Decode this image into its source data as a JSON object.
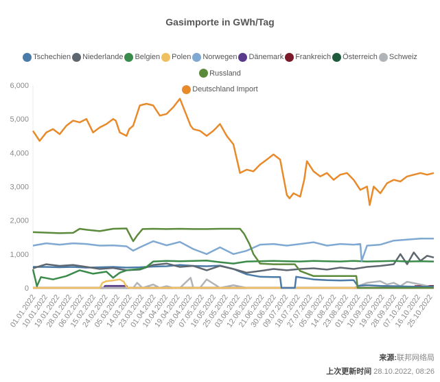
{
  "chart_data": {
    "type": "line",
    "title": "Gasimporte in GWh/Tag",
    "xlabel": "",
    "ylabel": "",
    "ylim": [
      0,
      6000
    ],
    "yticks": [
      "0",
      "1,000",
      "2,000",
      "3,000",
      "4,000",
      "5,000",
      "6,000"
    ],
    "ytick_values": [
      0,
      1000,
      2000,
      3000,
      4000,
      5000,
      6000
    ],
    "grid": false,
    "legend_position": "top",
    "x_day_range": [
      0,
      300
    ],
    "xtick_labels": [
      "01.01.2022",
      "10.01.2022",
      "19.01.2022",
      "28.01.2022",
      "06.02.2022",
      "15.02.2022",
      "24.02.2022",
      "05.03.2022",
      "14.03.2022",
      "23.03.2022",
      "01.04.2022",
      "10.04.2022",
      "19.04.2022",
      "28.04.2022",
      "07.05.2022",
      "16.05.2022",
      "25.05.2022",
      "03.06.2022",
      "12.06.2022",
      "21.06.2022",
      "30.06.2022",
      "09.07.2022",
      "18.07.2022",
      "27.07.2022",
      "05.08.2022",
      "14.08.2022",
      "23.08.2022",
      "01.09.2022",
      "10.09.2022",
      "19.09.2022",
      "28.09.2022",
      "07.10.2022",
      "16.10.2022",
      "25.10.2022"
    ],
    "x_days": [
      0,
      9,
      18,
      27,
      36,
      45,
      54,
      63,
      72,
      81,
      90,
      99,
      108,
      117,
      126,
      135,
      144,
      153,
      162,
      171,
      180,
      189,
      198,
      207,
      216,
      225,
      234,
      243,
      252,
      261,
      270,
      279,
      288,
      297
    ],
    "series": [
      {
        "name": "Tschechien",
        "color": "#4a7aa8",
        "x": [
          0,
          10,
          20,
          30,
          40,
          50,
          60,
          70,
          80,
          90,
          100,
          110,
          120,
          130,
          140,
          150,
          160,
          170,
          180,
          185,
          186,
          196,
          197,
          210,
          220,
          230,
          240,
          243,
          250,
          260,
          270,
          280,
          290,
          300
        ],
        "y": [
          620,
          620,
          610,
          620,
          600,
          610,
          620,
          600,
          610,
          630,
          640,
          680,
          650,
          640,
          660,
          560,
          400,
          330,
          320,
          320,
          0,
          0,
          330,
          250,
          230,
          220,
          230,
          60,
          80,
          60,
          50,
          40,
          30,
          40
        ]
      },
      {
        "name": "Niederlande",
        "color": "#5e6770",
        "x": [
          0,
          10,
          20,
          30,
          40,
          50,
          60,
          70,
          80,
          90,
          100,
          110,
          120,
          130,
          140,
          150,
          160,
          170,
          180,
          190,
          200,
          210,
          220,
          230,
          240,
          250,
          260,
          270,
          275,
          280,
          285,
          290,
          295,
          300
        ],
        "y": [
          580,
          700,
          650,
          680,
          620,
          560,
          590,
          520,
          540,
          680,
          720,
          620,
          650,
          520,
          650,
          560,
          450,
          500,
          560,
          520,
          560,
          580,
          540,
          600,
          560,
          620,
          650,
          700,
          1000,
          700,
          1050,
          800,
          950,
          900
        ]
      },
      {
        "name": "Belgien",
        "color": "#3a8a4a",
        "x": [
          0,
          3,
          6,
          15,
          25,
          35,
          45,
          55,
          60,
          65,
          70,
          80,
          85,
          90,
          100,
          110,
          120,
          130,
          140,
          150,
          160,
          170,
          180,
          190,
          200,
          210,
          220,
          230,
          240,
          250,
          260,
          270,
          280,
          290,
          300
        ],
        "y": [
          550,
          50,
          320,
          250,
          350,
          520,
          420,
          480,
          300,
          450,
          520,
          560,
          620,
          780,
          800,
          790,
          800,
          810,
          760,
          720,
          780,
          790,
          800,
          790,
          780,
          800,
          790,
          780,
          800,
          780,
          790,
          800,
          780,
          790,
          780
        ]
      },
      {
        "name": "Polen",
        "color": "#f0c060",
        "x": [
          0,
          50,
          52,
          55,
          60,
          65,
          68,
          70,
          72,
          150,
          300
        ],
        "y": [
          0,
          0,
          150,
          200,
          220,
          250,
          180,
          30,
          0,
          0,
          0
        ]
      },
      {
        "name": "Norwegen",
        "color": "#7fa8d2",
        "x": [
          0,
          10,
          20,
          30,
          40,
          50,
          60,
          70,
          75,
          80,
          90,
          100,
          110,
          120,
          130,
          140,
          150,
          160,
          170,
          180,
          190,
          200,
          210,
          220,
          230,
          240,
          245,
          246,
          250,
          260,
          270,
          280,
          290,
          300
        ],
        "y": [
          1250,
          1320,
          1280,
          1320,
          1300,
          1250,
          1260,
          1230,
          1100,
          1200,
          1380,
          1260,
          1360,
          1150,
          1000,
          1200,
          1000,
          1100,
          1280,
          1300,
          1250,
          1300,
          1350,
          1250,
          1300,
          1280,
          1300,
          800,
          1250,
          1280,
          1400,
          1430,
          1460,
          1460
        ]
      },
      {
        "name": "Dänemark",
        "color": "#5a3a8a",
        "x": [
          0,
          53,
          54,
          70,
          71,
          300
        ],
        "y": [
          0,
          0,
          60,
          60,
          0,
          0
        ]
      },
      {
        "name": "Frankreich",
        "color": "#7a1a2a",
        "x": [
          0,
          285,
          286,
          300
        ],
        "y": [
          0,
          0,
          50,
          60
        ]
      },
      {
        "name": "Österreich",
        "color": "#1e5a3c",
        "x": [
          0,
          300
        ],
        "y": [
          0,
          0
        ]
      },
      {
        "name": "Schweiz",
        "color": "#b0b4b8",
        "x": [
          0,
          75,
          78,
          82,
          90,
          95,
          100,
          105,
          110,
          118,
          120,
          125,
          130,
          140,
          150,
          160,
          170,
          180,
          240,
          250,
          260,
          265,
          270,
          275,
          280,
          290,
          295,
          300
        ],
        "y": [
          0,
          0,
          150,
          0,
          100,
          0,
          50,
          0,
          0,
          300,
          0,
          0,
          250,
          0,
          80,
          0,
          0,
          0,
          0,
          150,
          200,
          100,
          150,
          50,
          180,
          100,
          60,
          0
        ]
      },
      {
        "name": "Russland",
        "color": "#5a8a3a",
        "x": [
          0,
          20,
          30,
          35,
          40,
          50,
          60,
          70,
          75,
          78,
          82,
          90,
          100,
          110,
          120,
          130,
          140,
          150,
          155,
          158,
          162,
          165,
          170,
          180,
          196,
          200,
          210,
          220,
          230,
          242,
          243,
          300
        ],
        "y": [
          1650,
          1620,
          1630,
          1750,
          1720,
          1680,
          1750,
          1760,
          1380,
          1550,
          1740,
          1750,
          1740,
          1750,
          1740,
          1740,
          1750,
          1750,
          1750,
          1600,
          1300,
          1000,
          720,
          700,
          700,
          500,
          350,
          350,
          350,
          350,
          0,
          0
        ]
      },
      {
        "name": "Deutschland Import",
        "color": "#e8892a",
        "x": [
          0,
          5,
          10,
          15,
          20,
          25,
          30,
          35,
          40,
          45,
          50,
          55,
          60,
          62,
          65,
          70,
          72,
          75,
          80,
          85,
          90,
          95,
          100,
          105,
          110,
          115,
          118,
          120,
          125,
          130,
          135,
          140,
          145,
          150,
          155,
          160,
          165,
          170,
          175,
          180,
          185,
          190,
          192,
          195,
          200,
          203,
          205,
          210,
          215,
          220,
          225,
          230,
          235,
          240,
          245,
          250,
          252,
          255,
          260,
          265,
          270,
          275,
          280,
          285,
          290,
          295,
          300
        ],
        "y": [
          4650,
          4350,
          4600,
          4700,
          4550,
          4800,
          4950,
          4900,
          5000,
          4600,
          4750,
          4850,
          5000,
          4950,
          4600,
          4500,
          4700,
          4800,
          5400,
          5450,
          5400,
          5100,
          5150,
          5350,
          5600,
          5100,
          4800,
          4700,
          4650,
          4500,
          4650,
          4850,
          4500,
          4250,
          3400,
          3500,
          3450,
          3650,
          3800,
          3950,
          3800,
          2750,
          2650,
          2800,
          2700,
          3200,
          3750,
          3450,
          3300,
          3400,
          3200,
          3350,
          3400,
          3200,
          2900,
          3000,
          2450,
          3000,
          2800,
          3100,
          3200,
          3150,
          3300,
          3350,
          3400,
          3350,
          3400
        ]
      }
    ]
  },
  "legend": {
    "items": [
      {
        "label": "Tschechien",
        "color": "#4a7aa8"
      },
      {
        "label": "Niederlande",
        "color": "#5e6770"
      },
      {
        "label": "Belgien",
        "color": "#3a8a4a"
      },
      {
        "label": "Polen",
        "color": "#f0c060"
      },
      {
        "label": "Norwegen",
        "color": "#7fa8d2"
      },
      {
        "label": "Dänemark",
        "color": "#5a3a8a"
      },
      {
        "label": "Frankreich",
        "color": "#7a1a2a"
      },
      {
        "label": "Österreich",
        "color": "#1e5a3c"
      },
      {
        "label": "Schweiz",
        "color": "#b0b4b8"
      },
      {
        "label": "Russland",
        "color": "#5a8a3a"
      },
      {
        "label": "Deutschland Import",
        "color": "#e8892a"
      }
    ]
  },
  "footer": {
    "source_label": "来源:",
    "source_value": "联邦网络局",
    "updated_label": "上次更新时间",
    "updated_value": "28.10.2022, 08:26"
  }
}
